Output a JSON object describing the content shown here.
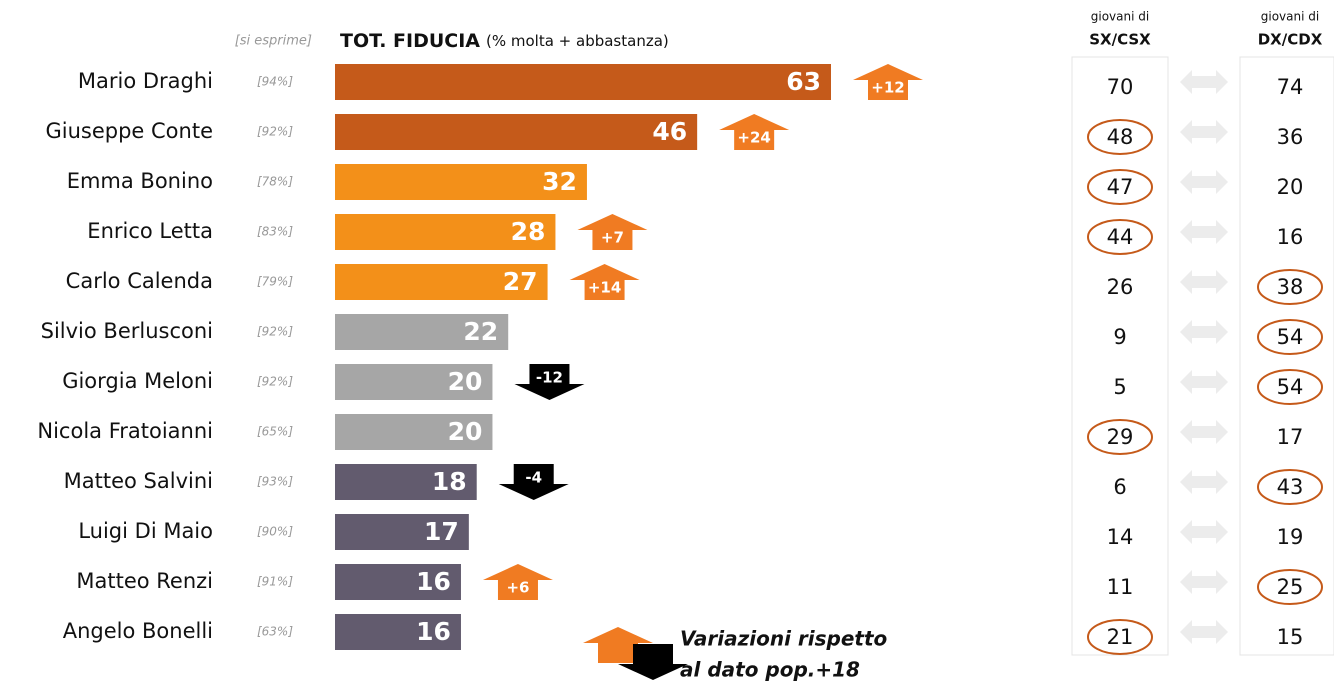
{
  "chart_data": {
    "type": "bar",
    "header": {
      "note": "[si esprime]",
      "title": "TOT. FIDUCIA",
      "subtitle": "(% molta + abbastanza)"
    },
    "categories": [
      "Mario Draghi",
      "Giuseppe Conte",
      "Emma Bonino",
      "Enrico Letta",
      "Carlo Calenda",
      "Silvio Berlusconi",
      "Giorgia Meloni",
      "Nicola Fratoianni",
      "Matteo Salvini",
      "Luigi Di Maio",
      "Matteo Renzi",
      "Angelo Bonelli"
    ],
    "expressed": [
      "[94%]",
      "[92%]",
      "[78%]",
      "[83%]",
      "[79%]",
      "[92%]",
      "[92%]",
      "[65%]",
      "[93%]",
      "[90%]",
      "[91%]",
      "[63%]"
    ],
    "values": [
      63,
      46,
      32,
      28,
      27,
      22,
      20,
      20,
      18,
      17,
      16,
      16
    ],
    "colors": [
      "#c55a1a",
      "#c55a1a",
      "#f39019",
      "#f39019",
      "#f39019",
      "#a6a6a6",
      "#a6a6a6",
      "#a6a6a6",
      "#625b6e",
      "#625b6e",
      "#625b6e",
      "#625b6e"
    ],
    "changes": [
      12,
      24,
      null,
      7,
      14,
      null,
      -12,
      null,
      -4,
      null,
      6,
      null
    ],
    "change_labels": [
      "+12",
      "+24",
      null,
      "+7",
      "+14",
      null,
      "-12",
      null,
      "-4",
      null,
      "+6",
      null
    ],
    "up_color": "#f07b22",
    "down_color": "#000000",
    "legend": [
      "Variazioni rispetto",
      "al dato pop.+18"
    ],
    "columns": [
      {
        "small": "giovani di",
        "title": "SX/CSX",
        "values": [
          70,
          48,
          47,
          44,
          26,
          9,
          5,
          29,
          6,
          14,
          11,
          21
        ],
        "circled": [
          false,
          true,
          true,
          true,
          false,
          false,
          false,
          true,
          false,
          false,
          false,
          true
        ]
      },
      {
        "small": "giovani di",
        "title": "DX/CDX",
        "values": [
          74,
          36,
          20,
          16,
          38,
          54,
          54,
          17,
          43,
          19,
          25,
          15
        ],
        "circled": [
          false,
          false,
          false,
          false,
          true,
          true,
          true,
          false,
          true,
          false,
          true,
          false
        ]
      }
    ]
  }
}
